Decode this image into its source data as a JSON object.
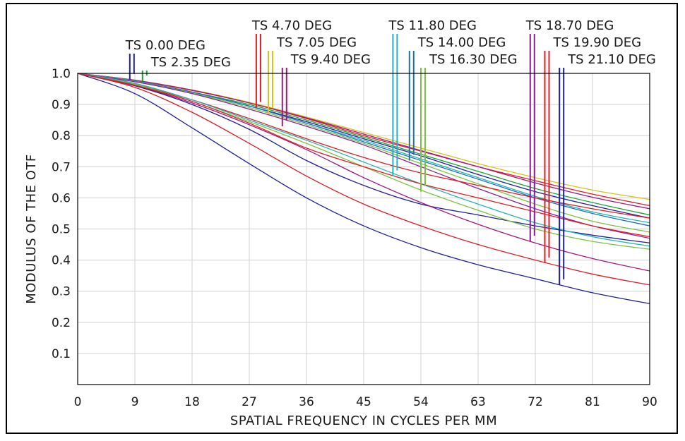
{
  "chart_data": {
    "type": "line",
    "title": "",
    "xlabel": "SPATIAL FREQUENCY IN CYCLES PER MM",
    "ylabel": "MODULUS OF THE OTF",
    "xlim": [
      0,
      90
    ],
    "ylim": [
      0,
      1.0
    ],
    "x_ticks": [
      "0",
      "9",
      "18",
      "27",
      "36",
      "45",
      "54",
      "63",
      "72",
      "81",
      "90"
    ],
    "y_ticks": [
      "0.1",
      "0.2",
      "0.3",
      "0.4",
      "0.5",
      "0.6",
      "0.7",
      "0.8",
      "0.9",
      "1.0"
    ],
    "grid": true,
    "x": [
      0,
      9,
      18,
      27,
      36,
      45,
      54,
      63,
      72,
      81,
      90
    ],
    "series": [
      {
        "name": "TS 0.00 DEG",
        "color": "#1f1f9a",
        "values": [
          1.0,
          0.975,
          0.94,
          0.895,
          0.845,
          0.79,
          0.735,
          0.675,
          0.62,
          0.575,
          0.535
        ]
      },
      {
        "name": "TS 2.35 DEG",
        "color": "#1aa33a",
        "values": [
          1.0,
          0.975,
          0.94,
          0.9,
          0.85,
          0.795,
          0.74,
          0.685,
          0.63,
          0.585,
          0.545
        ]
      },
      {
        "name": "TS 4.70 DEG",
        "color": "#e31b23",
        "values": [
          1.0,
          0.978,
          0.945,
          0.905,
          0.855,
          0.8,
          0.75,
          0.7,
          0.655,
          0.612,
          0.575
        ]
      },
      {
        "name": "TS 7.05 DEG",
        "color": "#d9c21a",
        "values": [
          1.0,
          0.978,
          0.947,
          0.907,
          0.86,
          0.81,
          0.76,
          0.71,
          0.665,
          0.625,
          0.595
        ]
      },
      {
        "name": "TS 9.40 DEG",
        "color": "#a0197f",
        "values": [
          1.0,
          0.978,
          0.946,
          0.905,
          0.857,
          0.805,
          0.752,
          0.7,
          0.648,
          0.602,
          0.565
        ]
      },
      {
        "name": "TS 11.80 DEG",
        "color": "#22b4b4",
        "values": [
          1.0,
          0.976,
          0.94,
          0.895,
          0.84,
          0.785,
          0.725,
          0.665,
          0.605,
          0.555,
          0.52
        ]
      },
      {
        "name": "TS 14.00 DEG",
        "color": "#1f6fb5",
        "values": [
          1.0,
          0.975,
          0.94,
          0.895,
          0.84,
          0.78,
          0.72,
          0.66,
          0.6,
          0.55,
          0.51
        ]
      },
      {
        "name": "TS 16.30 DEG",
        "color": "#7cc242",
        "values": [
          1.0,
          0.974,
          0.937,
          0.89,
          0.835,
          0.775,
          0.71,
          0.645,
          0.58,
          0.525,
          0.49
        ]
      },
      {
        "name": "TS 18.70 DEG",
        "color": "#8e1f99",
        "values": [
          1.0,
          0.973,
          0.935,
          0.885,
          0.83,
          0.77,
          0.7,
          0.63,
          0.565,
          0.51,
          0.47
        ]
      },
      {
        "name": "TS 19.90 DEG",
        "color": "#e31b23",
        "values": [
          1.0,
          0.965,
          0.915,
          0.855,
          0.79,
          0.73,
          0.68,
          0.64,
          0.6,
          0.565,
          0.535
        ]
      },
      {
        "name": "TS 21.10 DEG",
        "color": "#1f1f9a",
        "values": [
          1.0,
          0.96,
          0.9,
          0.82,
          0.72,
          0.64,
          0.58,
          0.545,
          0.51,
          0.48,
          0.455
        ]
      },
      {
        "name": "",
        "color": "#1f1f9a",
        "values": [
          1.0,
          0.935,
          0.825,
          0.71,
          0.6,
          0.51,
          0.44,
          0.385,
          0.34,
          0.295,
          0.26
        ]
      },
      {
        "name": "",
        "color": "#e31b23",
        "values": [
          1.0,
          0.955,
          0.875,
          0.775,
          0.67,
          0.58,
          0.51,
          0.45,
          0.4,
          0.355,
          0.32
        ]
      },
      {
        "name": "",
        "color": "#a0197f",
        "values": [
          1.0,
          0.962,
          0.905,
          0.835,
          0.755,
          0.665,
          0.585,
          0.515,
          0.455,
          0.405,
          0.365
        ]
      },
      {
        "name": "",
        "color": "#7cc242",
        "values": [
          1.0,
          0.965,
          0.91,
          0.845,
          0.775,
          0.7,
          0.625,
          0.56,
          0.5,
          0.46,
          0.435
        ]
      },
      {
        "name": "",
        "color": "#22b4b4",
        "values": [
          1.0,
          0.968,
          0.915,
          0.85,
          0.785,
          0.715,
          0.645,
          0.58,
          0.52,
          0.475,
          0.445
        ]
      },
      {
        "name": "",
        "color": "#e31b23",
        "values": [
          1.0,
          0.962,
          0.91,
          0.84,
          0.76,
          0.7,
          0.645,
          0.6,
          0.555,
          0.51,
          0.475
        ]
      }
    ],
    "field_markers": [
      {
        "label": "TS 0.00 DEG",
        "color": "#1f1f9a",
        "x": 8.2,
        "y": 0.98
      },
      {
        "label": "TS 2.35 DEG",
        "color": "#1aa33a",
        "x": 10.2,
        "y": 0.975
      },
      {
        "label": "TS 4.70 DEG",
        "color": "#e31b23",
        "x": 28.1,
        "y": 0.89
      },
      {
        "label": "TS 7.05 DEG",
        "color": "#d9c21a",
        "x": 30.0,
        "y": 0.87
      },
      {
        "label": "TS 9.40 DEG",
        "color": "#a0197f",
        "x": 32.2,
        "y": 0.83
      },
      {
        "label": "TS 11.80 DEG",
        "color": "#22b4b4",
        "x": 49.6,
        "y": 0.67
      },
      {
        "label": "TS 14.00 DEG",
        "color": "#1f6fb5",
        "x": 52.2,
        "y": 0.72
      },
      {
        "label": "TS 16.30 DEG",
        "color": "#7cc242",
        "x": 54.0,
        "y": 0.62
      },
      {
        "label": "TS 18.70 DEG",
        "color": "#8e1f99",
        "x": 71.2,
        "y": 0.46
      },
      {
        "label": "TS 19.90 DEG",
        "color": "#e31b23",
        "x": 73.5,
        "y": 0.39
      },
      {
        "label": "TS 21.10 DEG",
        "color": "#1f1f9a",
        "x": 75.8,
        "y": 0.32
      }
    ]
  }
}
